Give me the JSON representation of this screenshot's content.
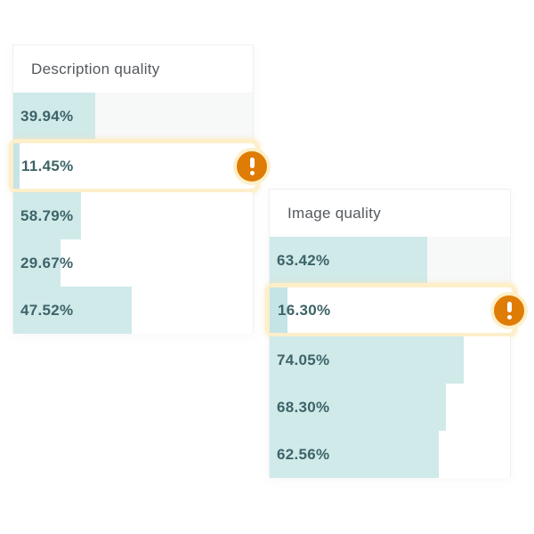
{
  "icons": {
    "alert_icon": "exclamation-icon",
    "alert_glyph": "!"
  },
  "colors": {
    "bar_fill": "#d0e9e9",
    "highlight_bar_fill": "#c5e4e5",
    "row_track_bg": "#f7f8f8",
    "card_bg": "#ffffff",
    "card_border": "#f0f0f0",
    "title_text": "#55595e",
    "value_text": "#3d6468",
    "highlight_border": "#fdefc9",
    "badge_bg": "#df7c05",
    "badge_glyph": "#ffffff"
  },
  "cards": [
    {
      "title": "Description quality",
      "rows": [
        {
          "value": "39.94%",
          "bar_pct": 34.3
        },
        {
          "value": "11.45%",
          "bar_pct": 2.6,
          "highlighted": true,
          "alert": true
        },
        {
          "value": "58.79%",
          "bar_pct": 28.4
        },
        {
          "value": "29.67%",
          "bar_pct": 19.6
        },
        {
          "value": "47.52%",
          "bar_pct": 49.4
        }
      ]
    },
    {
      "title": "Image quality",
      "rows": [
        {
          "value": "63.42%",
          "bar_pct": 65.4
        },
        {
          "value": "16.30%",
          "bar_pct": 7.4,
          "highlighted": true,
          "alert": true
        },
        {
          "value": "74.05%",
          "bar_pct": 80.9
        },
        {
          "value": "68.30%",
          "bar_pct": 73.5
        },
        {
          "value": "62.56%",
          "bar_pct": 70.2
        }
      ]
    }
  ],
  "chart_data": [
    {
      "type": "bar",
      "orientation": "horizontal",
      "title": "Description quality",
      "values": [
        39.94,
        11.45,
        58.79,
        29.67,
        47.52
      ],
      "value_labels": [
        "39.94%",
        "11.45%",
        "58.79%",
        "29.67%",
        "47.52%"
      ],
      "highlighted_index": 1,
      "highlighted_value": 11.45,
      "bar_display_pct_of_width": [
        34.3,
        2.6,
        28.4,
        19.6,
        49.4
      ],
      "legend": "none",
      "grid": false,
      "note": "rows are unlabeled; highlighted low-score row carries an orange alert badge"
    },
    {
      "type": "bar",
      "orientation": "horizontal",
      "title": "Image quality",
      "values": [
        63.42,
        16.3,
        74.05,
        68.3,
        62.56
      ],
      "value_labels": [
        "63.42%",
        "16.30%",
        "74.05%",
        "68.30%",
        "62.56%"
      ],
      "highlighted_index": 1,
      "highlighted_value": 16.3,
      "bar_display_pct_of_width": [
        65.4,
        7.4,
        80.9,
        73.5,
        70.2
      ],
      "legend": "none",
      "grid": false,
      "note": "rows are unlabeled; highlighted low-score row carries an orange alert badge"
    }
  ]
}
